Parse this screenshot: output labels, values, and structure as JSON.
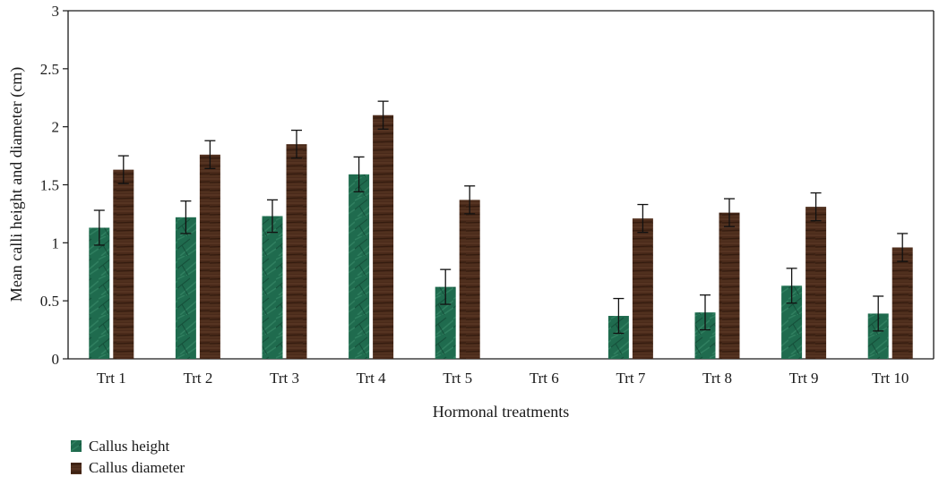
{
  "chart_data": {
    "type": "bar",
    "title": "",
    "xlabel": "Hormonal treatments",
    "ylabel": "Mean calli height and diameter (cm)",
    "ylim": [
      0,
      3
    ],
    "yticks": [
      "0",
      "0.5",
      "1",
      "1.5",
      "2",
      "2.5",
      "3"
    ],
    "grid": false,
    "legend_position": "bottom-left",
    "categories": [
      "Trt 1",
      "Trt 2",
      "Trt 3",
      "Trt 4",
      "Trt 5",
      "Trt 6",
      "Trt 7",
      "Trt 8",
      "Trt 9",
      "Trt 10"
    ],
    "series": [
      {
        "name": "Callus height",
        "color": "#1f6b4e",
        "values": [
          1.13,
          1.22,
          1.23,
          1.59,
          0.62,
          0,
          0.37,
          0.4,
          0.63,
          0.39
        ],
        "errors": [
          0.15,
          0.14,
          0.14,
          0.15,
          0.15,
          0,
          0.15,
          0.15,
          0.15,
          0.15
        ]
      },
      {
        "name": "Callus diameter",
        "color": "#4a2a1a",
        "values": [
          1.63,
          1.76,
          1.85,
          2.1,
          1.37,
          0,
          1.21,
          1.26,
          1.31,
          0.96
        ],
        "errors": [
          0.12,
          0.12,
          0.12,
          0.12,
          0.12,
          0,
          0.12,
          0.12,
          0.12,
          0.12
        ]
      }
    ]
  }
}
